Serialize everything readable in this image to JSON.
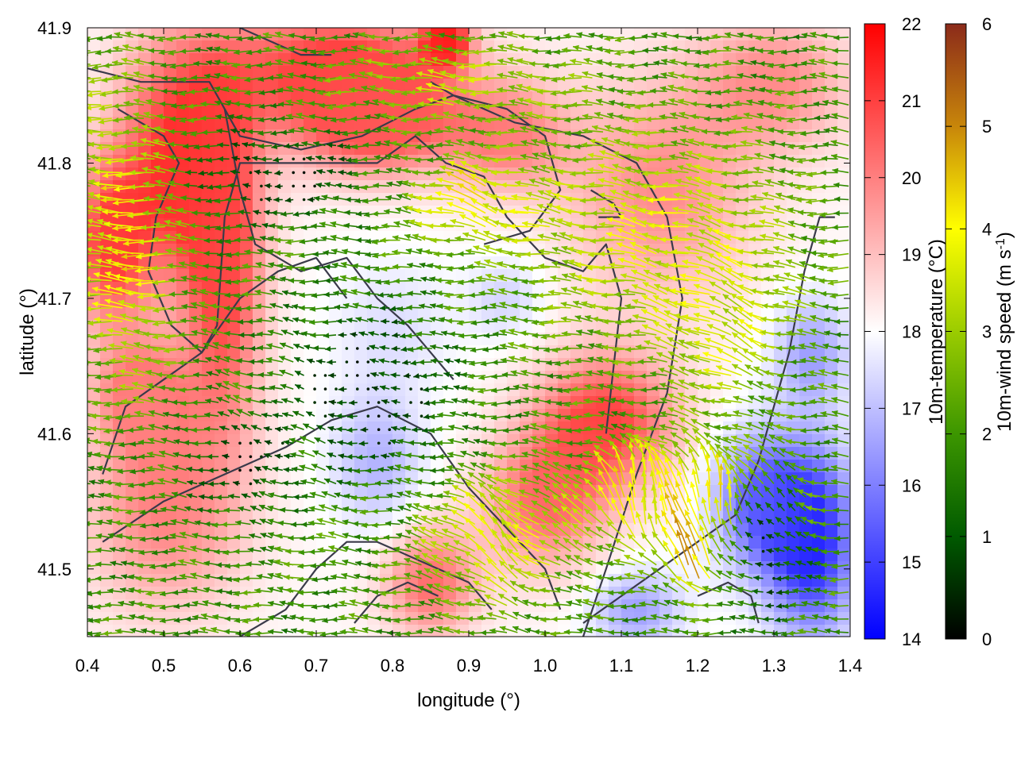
{
  "chart_data": {
    "type": "heatmap",
    "title": "",
    "xlabel": "longitude (°)",
    "ylabel": "latitude (°)",
    "xlim": [
      0.4,
      1.4
    ],
    "ylim": [
      41.45,
      41.9
    ],
    "x_ticks": [
      {
        "value": 0.4,
        "label": "0.4"
      },
      {
        "value": 0.5,
        "label": "0.5"
      },
      {
        "value": 0.6,
        "label": "0.6"
      },
      {
        "value": 0.7,
        "label": "0.7"
      },
      {
        "value": 0.8,
        "label": "0.8"
      },
      {
        "value": 0.9,
        "label": "0.9"
      },
      {
        "value": 1.0,
        "label": "1.0"
      },
      {
        "value": 1.1,
        "label": "1.1"
      },
      {
        "value": 1.2,
        "label": "1.2"
      },
      {
        "value": 1.3,
        "label": "1.3"
      },
      {
        "value": 1.4,
        "label": "1.4"
      }
    ],
    "y_ticks": [
      {
        "value": 41.5,
        "label": "41.5"
      },
      {
        "value": 41.6,
        "label": "41.6"
      },
      {
        "value": 41.7,
        "label": "41.7"
      },
      {
        "value": 41.8,
        "label": "41.8"
      },
      {
        "value": 41.9,
        "label": "41.9"
      }
    ],
    "temperature_colorbar": {
      "label": "10m-temperature (°C)",
      "range": [
        14,
        22
      ],
      "ticks": [
        {
          "value": 14,
          "label": "14"
        },
        {
          "value": 15,
          "label": "15"
        },
        {
          "value": 16,
          "label": "16"
        },
        {
          "value": 17,
          "label": "17"
        },
        {
          "value": 18,
          "label": "18"
        },
        {
          "value": 19,
          "label": "19"
        },
        {
          "value": 20,
          "label": "20"
        },
        {
          "value": 21,
          "label": "21"
        },
        {
          "value": 22,
          "label": "22"
        }
      ],
      "colors": [
        "#0000ff",
        "#ffffff",
        "#ff0000"
      ]
    },
    "wind_colorbar": {
      "label_main": "10m-wind speed (m s",
      "label_sup": "-1",
      "label_end": ")",
      "range": [
        0,
        6
      ],
      "ticks": [
        {
          "value": 0,
          "label": "0"
        },
        {
          "value": 1,
          "label": "1"
        },
        {
          "value": 2,
          "label": "2"
        },
        {
          "value": 3,
          "label": "3"
        },
        {
          "value": 4,
          "label": "4"
        },
        {
          "value": 5,
          "label": "5"
        },
        {
          "value": 6,
          "label": "6"
        }
      ],
      "colors": [
        "#000000",
        "#005a00",
        "#3c9600",
        "#9bcc00",
        "#ffff00",
        "#c8860a",
        "#8b2a1a"
      ]
    },
    "temperature_regions": [
      {
        "lon": 0.52,
        "lat": 41.8,
        "temp": 21.3,
        "rlon": 0.08,
        "rlat": 0.09
      },
      {
        "lon": 0.43,
        "lat": 41.74,
        "temp": 21.0,
        "rlon": 0.05,
        "rlat": 0.06
      },
      {
        "lon": 0.58,
        "lat": 41.72,
        "temp": 20.8,
        "rlon": 0.05,
        "rlat": 0.12
      },
      {
        "lon": 0.72,
        "lat": 41.87,
        "temp": 21.0,
        "rlon": 0.15,
        "rlat": 0.05
      },
      {
        "lon": 0.87,
        "lat": 41.89,
        "temp": 21.8,
        "rlon": 0.03,
        "rlat": 0.02
      },
      {
        "lon": 0.78,
        "lat": 41.83,
        "temp": 20.5,
        "rlon": 0.1,
        "rlat": 0.04
      },
      {
        "lon": 0.5,
        "lat": 41.55,
        "temp": 20.0,
        "rlon": 0.1,
        "rlat": 0.08
      },
      {
        "lon": 0.85,
        "lat": 41.49,
        "temp": 20.3,
        "rlon": 0.06,
        "rlat": 0.04
      },
      {
        "lon": 1.08,
        "lat": 41.61,
        "temp": 21.0,
        "rlon": 0.09,
        "rlat": 0.05
      },
      {
        "lon": 1.0,
        "lat": 41.55,
        "temp": 20.3,
        "rlon": 0.08,
        "rlat": 0.05
      },
      {
        "lon": 1.15,
        "lat": 41.78,
        "temp": 19.8,
        "rlon": 0.12,
        "rlat": 0.08
      },
      {
        "lon": 1.3,
        "lat": 41.86,
        "temp": 19.8,
        "rlon": 0.1,
        "rlat": 0.05
      },
      {
        "lon": 0.95,
        "lat": 41.82,
        "temp": 20.0,
        "rlon": 0.08,
        "rlat": 0.04
      },
      {
        "lon": 0.47,
        "lat": 41.63,
        "temp": 20.0,
        "rlon": 0.06,
        "rlat": 0.04
      },
      {
        "lon": 0.8,
        "lat": 41.68,
        "temp": 17.5,
        "rlon": 0.08,
        "rlat": 0.05
      },
      {
        "lon": 0.78,
        "lat": 41.58,
        "temp": 16.8,
        "rlon": 0.06,
        "rlat": 0.05
      },
      {
        "lon": 0.95,
        "lat": 41.7,
        "temp": 17.3,
        "rlon": 0.05,
        "rlat": 0.03
      },
      {
        "lon": 1.35,
        "lat": 41.52,
        "temp": 14.5,
        "rlon": 0.06,
        "rlat": 0.07
      },
      {
        "lon": 1.28,
        "lat": 41.55,
        "temp": 15.6,
        "rlon": 0.06,
        "rlat": 0.05
      },
      {
        "lon": 1.12,
        "lat": 41.47,
        "temp": 16.5,
        "rlon": 0.06,
        "rlat": 0.03
      },
      {
        "lon": 1.35,
        "lat": 41.66,
        "temp": 16.5,
        "rlon": 0.05,
        "rlat": 0.04
      }
    ],
    "wind_field": {
      "grid_step_lon": 0.014,
      "grid_step_lat": 0.01,
      "prevailing_direction": "westward",
      "strong_zones": [
        {
          "lon": 0.47,
          "lat": 41.74,
          "speed": 4.2,
          "dir_deg": 175,
          "rlon": 0.06,
          "rlat": 0.1
        },
        {
          "lon": 0.92,
          "lat": 41.77,
          "speed": 4.0,
          "dir_deg": 160,
          "rlon": 0.08,
          "rlat": 0.03
        },
        {
          "lon": 1.15,
          "lat": 41.75,
          "speed": 3.6,
          "dir_deg": 170,
          "rlon": 0.18,
          "rlat": 0.08
        },
        {
          "lon": 0.9,
          "lat": 41.86,
          "speed": 3.3,
          "dir_deg": 175,
          "rlon": 0.15,
          "rlat": 0.03
        },
        {
          "lon": 0.95,
          "lat": 41.52,
          "speed": 3.8,
          "dir_deg": 135,
          "rlon": 0.1,
          "rlat": 0.05
        },
        {
          "lon": 1.22,
          "lat": 41.55,
          "speed": 4.2,
          "dir_deg": 100,
          "rlon": 0.12,
          "rlat": 0.04
        },
        {
          "lon": 1.12,
          "lat": 41.55,
          "speed": 3.8,
          "dir_deg": 110,
          "rlon": 0.05,
          "rlat": 0.03
        },
        {
          "lon": 1.2,
          "lat": 41.5,
          "speed": 5.0,
          "dir_deg": 100,
          "rlon": 0.03,
          "rlat": 0.02
        },
        {
          "lon": 1.25,
          "lat": 41.68,
          "speed": 3.5,
          "dir_deg": 150,
          "rlon": 0.08,
          "rlat": 0.06
        },
        {
          "lon": 0.42,
          "lat": 41.85,
          "speed": 2.6,
          "dir_deg": 180,
          "rlon": 0.04,
          "rlat": 0.05
        },
        {
          "lon": 0.65,
          "lat": 41.6,
          "speed": 2.4,
          "dir_deg": 160,
          "rlon": 0.1,
          "rlat": 0.08
        }
      ],
      "calm_zones": [
        {
          "lon": 0.76,
          "lat": 41.63,
          "rlon": 0.12,
          "rlat": 0.06
        },
        {
          "lon": 0.62,
          "lat": 41.58,
          "rlon": 0.08,
          "rlat": 0.04
        },
        {
          "lon": 0.66,
          "lat": 41.79,
          "rlon": 0.1,
          "rlat": 0.03
        },
        {
          "lon": 1.3,
          "lat": 41.52,
          "rlon": 0.05,
          "rlat": 0.05
        }
      ]
    },
    "contours": [
      [
        [
          0.4,
          41.87
        ],
        [
          0.47,
          41.86
        ],
        [
          0.56,
          41.86
        ],
        [
          0.6,
          41.82
        ],
        [
          0.68,
          41.81
        ],
        [
          0.76,
          41.82
        ],
        [
          0.83,
          41.84
        ],
        [
          0.88,
          41.85
        ],
        [
          0.96,
          41.83
        ],
        [
          1.05,
          41.82
        ],
        [
          1.12,
          41.8
        ],
        [
          1.16,
          41.76
        ],
        [
          1.18,
          41.7
        ],
        [
          1.16,
          41.63
        ],
        [
          1.12,
          41.57
        ],
        [
          1.08,
          41.5
        ],
        [
          1.05,
          41.45
        ]
      ],
      [
        [
          0.44,
          41.84
        ],
        [
          0.5,
          41.82
        ],
        [
          0.52,
          41.8
        ],
        [
          0.49,
          41.76
        ],
        [
          0.48,
          41.72
        ],
        [
          0.51,
          41.68
        ],
        [
          0.55,
          41.66
        ],
        [
          0.57,
          41.68
        ],
        [
          0.58,
          41.76
        ],
        [
          0.6,
          41.8
        ],
        [
          0.7,
          41.8
        ],
        [
          0.78,
          41.8
        ],
        [
          0.83,
          41.82
        ],
        [
          0.87,
          41.8
        ],
        [
          0.92,
          41.79
        ],
        [
          0.95,
          41.76
        ],
        [
          1.0,
          41.73
        ],
        [
          1.05,
          41.72
        ],
        [
          1.08,
          41.74
        ],
        [
          1.1,
          41.7
        ],
        [
          1.08,
          41.6
        ]
      ],
      [
        [
          0.58,
          41.84
        ],
        [
          0.6,
          41.78
        ],
        [
          0.62,
          41.74
        ],
        [
          0.68,
          41.72
        ],
        [
          0.74,
          41.73
        ],
        [
          0.78,
          41.7
        ],
        [
          0.82,
          41.68
        ],
        [
          0.85,
          41.66
        ],
        [
          0.88,
          41.64
        ]
      ],
      [
        [
          0.6,
          41.9
        ],
        [
          0.64,
          41.89
        ],
        [
          0.68,
          41.88
        ],
        [
          0.72,
          41.88
        ]
      ],
      [
        [
          0.85,
          41.86
        ],
        [
          0.88,
          41.85
        ],
        [
          0.95,
          41.84
        ],
        [
          1.0,
          41.82
        ],
        [
          1.02,
          41.78
        ],
        [
          0.98,
          41.75
        ],
        [
          0.92,
          41.74
        ]
      ],
      [
        [
          0.42,
          41.57
        ],
        [
          0.45,
          41.62
        ],
        [
          0.5,
          41.64
        ],
        [
          0.55,
          41.66
        ],
        [
          0.6,
          41.7
        ],
        [
          0.65,
          41.72
        ],
        [
          0.7,
          41.73
        ],
        [
          0.74,
          41.7
        ]
      ],
      [
        [
          0.42,
          41.52
        ],
        [
          0.5,
          41.55
        ],
        [
          0.58,
          41.57
        ],
        [
          0.66,
          41.59
        ],
        [
          0.72,
          41.61
        ],
        [
          0.78,
          41.62
        ],
        [
          0.85,
          41.6
        ],
        [
          0.9,
          41.56
        ],
        [
          0.95,
          41.53
        ],
        [
          1.0,
          41.5
        ],
        [
          1.02,
          41.47
        ]
      ],
      [
        [
          0.6,
          41.45
        ],
        [
          0.66,
          41.47
        ],
        [
          0.7,
          41.5
        ],
        [
          0.74,
          41.52
        ],
        [
          0.78,
          41.52
        ],
        [
          0.82,
          41.51
        ],
        [
          0.86,
          41.5
        ],
        [
          0.9,
          41.49
        ],
        [
          0.93,
          41.47
        ]
      ],
      [
        [
          0.75,
          41.46
        ],
        [
          0.78,
          41.48
        ],
        [
          0.82,
          41.49
        ],
        [
          0.86,
          41.48
        ]
      ],
      [
        [
          1.05,
          41.46
        ],
        [
          1.1,
          41.48
        ],
        [
          1.15,
          41.5
        ],
        [
          1.2,
          41.52
        ],
        [
          1.25,
          41.54
        ],
        [
          1.28,
          41.58
        ],
        [
          1.3,
          41.62
        ],
        [
          1.32,
          41.66
        ],
        [
          1.34,
          41.72
        ],
        [
          1.36,
          41.76
        ],
        [
          1.38,
          41.76
        ]
      ],
      [
        [
          1.2,
          41.48
        ],
        [
          1.24,
          41.49
        ],
        [
          1.27,
          41.48
        ],
        [
          1.28,
          41.46
        ]
      ],
      [
        [
          1.06,
          41.78
        ],
        [
          1.09,
          41.77
        ],
        [
          1.1,
          41.76
        ],
        [
          1.07,
          41.76
        ]
      ]
    ]
  }
}
